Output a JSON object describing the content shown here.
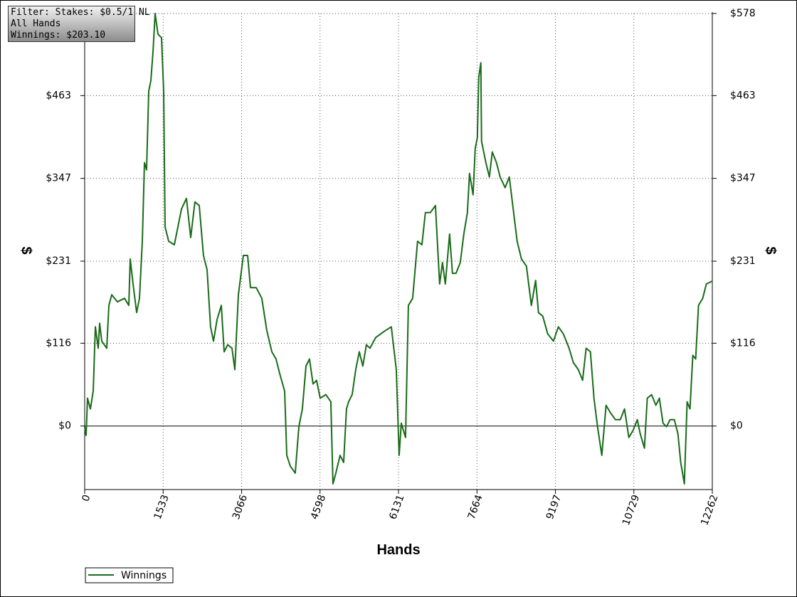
{
  "chart_data": {
    "type": "line",
    "info": [
      "Filter: Stakes: $0.5/1 NL",
      "All Hands",
      "Winnings: $203.10"
    ],
    "x_label": "Hands",
    "y_label": "$",
    "y2_label": "$",
    "xlim": [
      0,
      12262
    ],
    "xticks": [
      0,
      1533,
      3066,
      4598,
      6131,
      7664,
      9197,
      10729,
      12262
    ],
    "ylim": [
      -89,
      578
    ],
    "yticks": [
      {
        "value": 0,
        "label": "$0"
      },
      {
        "value": 116,
        "label": "$116"
      },
      {
        "value": 231,
        "label": "$231"
      },
      {
        "value": 347,
        "label": "$347"
      },
      {
        "value": 463,
        "label": "$463"
      },
      {
        "value": 578,
        "label": "$578"
      }
    ],
    "grid": true,
    "legend": "bottom-left",
    "x": [
      0,
      28,
      56,
      111,
      167,
      209,
      264,
      292,
      334,
      431,
      473,
      528,
      639,
      778,
      862,
      890,
      945,
      1015,
      1071,
      1126,
      1168,
      1209,
      1251,
      1293,
      1335,
      1376,
      1432,
      1501,
      1543,
      1571,
      1640,
      1752,
      1891,
      1988,
      2071,
      2154,
      2238,
      2321,
      2391,
      2460,
      2516,
      2586,
      2669,
      2725,
      2794,
      2878,
      2933,
      3003,
      3100,
      3183,
      3239,
      3350,
      3461,
      3558,
      3656,
      3739,
      3808,
      3906,
      3948,
      4017,
      4114,
      4184,
      4253,
      4323,
      4392,
      4462,
      4531,
      4601,
      4712,
      4809,
      4851,
      4907,
      4990,
      5059,
      5115,
      5157,
      5226,
      5296,
      5365,
      5435,
      5504,
      5574,
      5685,
      5782,
      5879,
      5990,
      6088,
      6143,
      6185,
      6268,
      6324,
      6407,
      6504,
      6588,
      6657,
      6754,
      6852,
      6935,
      6990,
      7046,
      7129,
      7185,
      7254,
      7338,
      7407,
      7477,
      7518,
      7588,
      7629,
      7671,
      7699,
      7740,
      7754,
      7838,
      7907,
      7963,
      8046,
      8116,
      8213,
      8296,
      8380,
      8449,
      8533,
      8630,
      8727,
      8810,
      8866,
      8949,
      9047,
      9158,
      9255,
      9352,
      9463,
      9547,
      9644,
      9728,
      9797,
      9880,
      9950,
      10019,
      10103,
      10186,
      10269,
      10367,
      10464,
      10547,
      10631,
      10714,
      10797,
      10853,
      10936,
      10992,
      11075,
      11159,
      11228,
      11298,
      11367,
      11437,
      11520,
      11590,
      11645,
      11715,
      11770,
      11826,
      11881,
      11937,
      11992,
      12075,
      12145,
      12262
    ],
    "series": [
      {
        "name": "Winnings",
        "color": "#196b19",
        "values": [
          -1,
          -13,
          39,
          24,
          49,
          139,
          109,
          144,
          119,
          109,
          169,
          184,
          174,
          179,
          169,
          234,
          199,
          159,
          179,
          259,
          369,
          359,
          469,
          484,
          524,
          578,
          549,
          544,
          469,
          279,
          259,
          254,
          304,
          319,
          264,
          314,
          309,
          239,
          219,
          139,
          119,
          149,
          169,
          104,
          114,
          109,
          79,
          184,
          239,
          239,
          194,
          194,
          179,
          134,
          104,
          94,
          74,
          49,
          -41,
          -56,
          -66,
          -1,
          24,
          84,
          94,
          59,
          64,
          39,
          44,
          34,
          -81,
          -66,
          -41,
          -51,
          24,
          34,
          44,
          79,
          104,
          84,
          114,
          109,
          124,
          129,
          134,
          139,
          79,
          -41,
          4,
          -16,
          169,
          179,
          259,
          254,
          299,
          299,
          309,
          199,
          229,
          199,
          269,
          214,
          214,
          229,
          269,
          299,
          354,
          324,
          389,
          404,
          489,
          509,
          399,
          369,
          349,
          384,
          369,
          349,
          334,
          349,
          299,
          259,
          234,
          224,
          169,
          204,
          159,
          154,
          129,
          119,
          139,
          129,
          109,
          89,
          79,
          64,
          109,
          104,
          39,
          -1,
          -41,
          29,
          19,
          9,
          9,
          24,
          -16,
          -6,
          9,
          -11,
          -31,
          39,
          44,
          29,
          39,
          4,
          -1,
          9,
          9,
          -11,
          -51,
          -81,
          34,
          24,
          99,
          94,
          169,
          179,
          199,
          203.1
        ]
      }
    ]
  }
}
